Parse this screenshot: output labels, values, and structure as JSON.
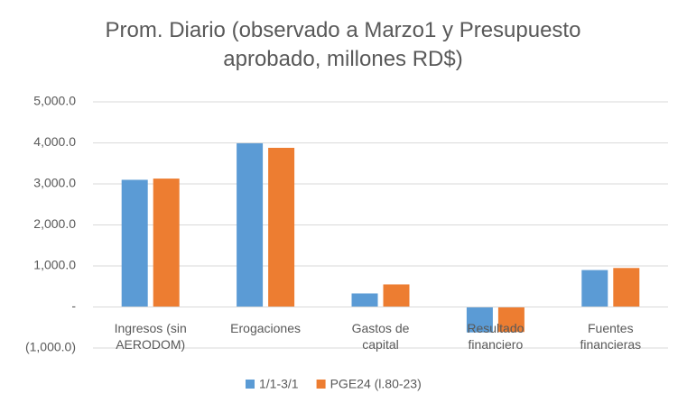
{
  "chart_data": {
    "type": "bar",
    "title": "Prom. Diario (observado a Marzo1 y Presupuesto aprobado, millones RD$)",
    "categories": [
      "Ingresos (sin AERODOM)",
      "Erogaciones",
      "Gastos de capital",
      "Resultado financiero",
      "Fuentes financieras"
    ],
    "series": [
      {
        "name": "1/1-3/1",
        "color": "#5b9bd5",
        "values": [
          3100,
          3990,
          330,
          -620,
          900
        ]
      },
      {
        "name": "PGE24 (l.80-23)",
        "color": "#ed7d31",
        "values": [
          3130,
          3880,
          550,
          -610,
          950
        ]
      }
    ],
    "ylim": [
      -1000,
      5000
    ],
    "yticks": [
      {
        "value": -1000,
        "label": "(1,000.0)"
      },
      {
        "value": 0,
        "label": "-"
      },
      {
        "value": 1000,
        "label": "1,000.0"
      },
      {
        "value": 2000,
        "label": "2,000.0"
      },
      {
        "value": 3000,
        "label": "3,000.0"
      },
      {
        "value": 4000,
        "label": "4,000.0"
      },
      {
        "value": 5000,
        "label": "5,000.0"
      }
    ],
    "grid": true,
    "legend": "bottom"
  }
}
